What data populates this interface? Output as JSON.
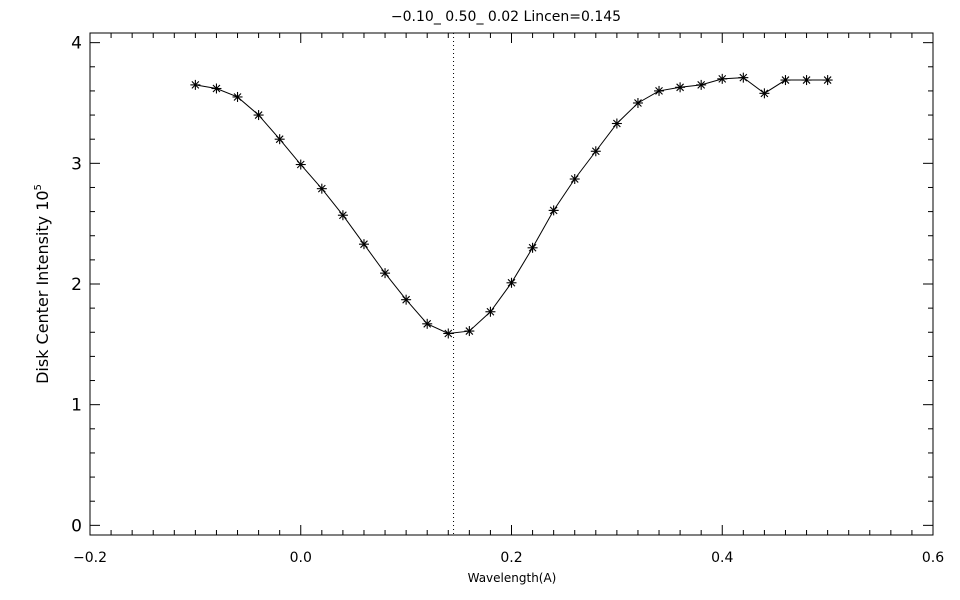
{
  "chart_data": {
    "type": "line",
    "title": "−0.10_ 0.50_ 0.02   Lincen=0.145",
    "xlabel": "Wavelength(A)",
    "ylabel": "Disk Center Intensity 10",
    "ylabel_superscript": "5",
    "xlim": [
      -0.2,
      0.6
    ],
    "ylim": [
      -0.08,
      4.08
    ],
    "x_ticks": [
      -0.2,
      0.0,
      0.2,
      0.4,
      0.6
    ],
    "x_tick_labels": [
      "−0.2",
      "0.0",
      "0.2",
      "0.4",
      "0.6"
    ],
    "y_ticks": [
      0,
      1,
      2,
      3,
      4
    ],
    "y_tick_labels": [
      "0",
      "1",
      "2",
      "3",
      "4"
    ],
    "grid": false,
    "marker": "asterisk",
    "line_color": "#000000",
    "reference_line": {
      "x": 0.145,
      "style": "dotted"
    },
    "series": [
      {
        "x": [
          -0.1,
          -0.08,
          -0.06,
          -0.04,
          -0.02,
          0.0,
          0.02,
          0.04,
          0.06,
          0.08,
          0.1,
          0.12,
          0.14,
          0.16,
          0.18,
          0.2,
          0.22,
          0.24,
          0.26,
          0.28,
          0.3,
          0.32,
          0.34,
          0.36,
          0.38,
          0.4,
          0.42,
          0.44,
          0.46,
          0.48,
          0.5
        ],
        "y": [
          3.65,
          3.62,
          3.55,
          3.4,
          3.2,
          2.99,
          2.79,
          2.57,
          2.33,
          2.09,
          1.87,
          1.67,
          1.59,
          1.61,
          1.77,
          2.01,
          2.3,
          2.61,
          2.87,
          3.1,
          3.33,
          3.5,
          3.6,
          3.63,
          3.65,
          3.7,
          3.71,
          3.58,
          3.69,
          3.69,
          3.69
        ]
      }
    ]
  }
}
